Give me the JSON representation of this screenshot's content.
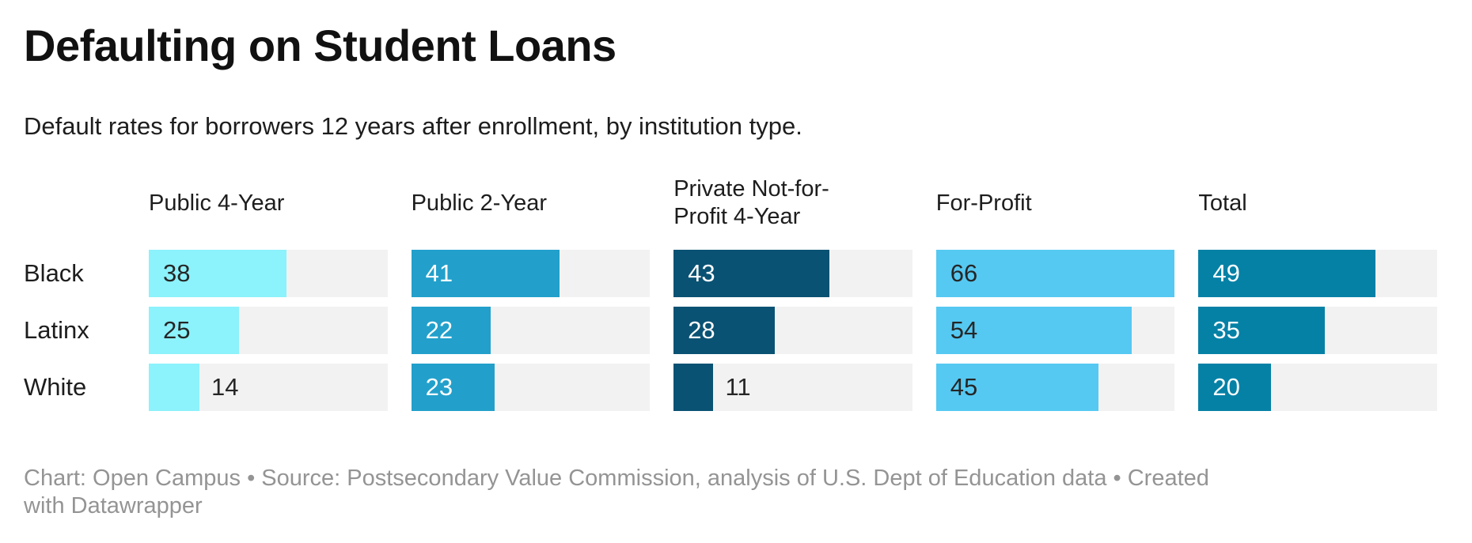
{
  "header": {
    "title": "Defaulting on Student Loans",
    "subtitle": "Default rates for borrowers 12 years after enrollment, by institution type."
  },
  "footer": {
    "text": "Chart: Open Campus • Source: Postsecondary Value Commission, analysis of U.S. Dept of Education data • Created with Datawrapper"
  },
  "colors": {
    "track_background": "#f2f2f2",
    "value_text_dark": "#262626",
    "value_text_light": "#ffffff",
    "row_label_text": "#1d1d1d",
    "footer_text": "#949494"
  },
  "chart_data": {
    "type": "bar",
    "orientation": "horizontal",
    "layout": "split-bars small multiples, one column per institution type",
    "title": "Defaulting on Student Loans",
    "subtitle": "Default rates for borrowers 12 years after enrollment, by institution type.",
    "categories": [
      "Black",
      "Latinx",
      "White"
    ],
    "series": [
      {
        "name": "Public 4-Year",
        "values": [
          38,
          25,
          14
        ],
        "color": "#8cf2fb",
        "value_text": "dark"
      },
      {
        "name": "Public 2-Year",
        "values": [
          41,
          22,
          23
        ],
        "color": "#22a0cb",
        "value_text": "light"
      },
      {
        "name": "Private Not-for-Profit 4-Year",
        "values": [
          43,
          28,
          11
        ],
        "color": "#0a5273",
        "value_text": "light"
      },
      {
        "name": "For-Profit",
        "values": [
          66,
          54,
          45
        ],
        "color": "#55c9f2",
        "value_text": "dark"
      },
      {
        "name": "Total",
        "values": [
          49,
          35,
          20
        ],
        "color": "#0681a6",
        "value_text": "light"
      }
    ],
    "xlim": [
      0,
      66
    ],
    "grid": false,
    "legend": "none",
    "value_labels": "at bar start inside the bar; placed outside the bar in dark text when value < 15"
  }
}
